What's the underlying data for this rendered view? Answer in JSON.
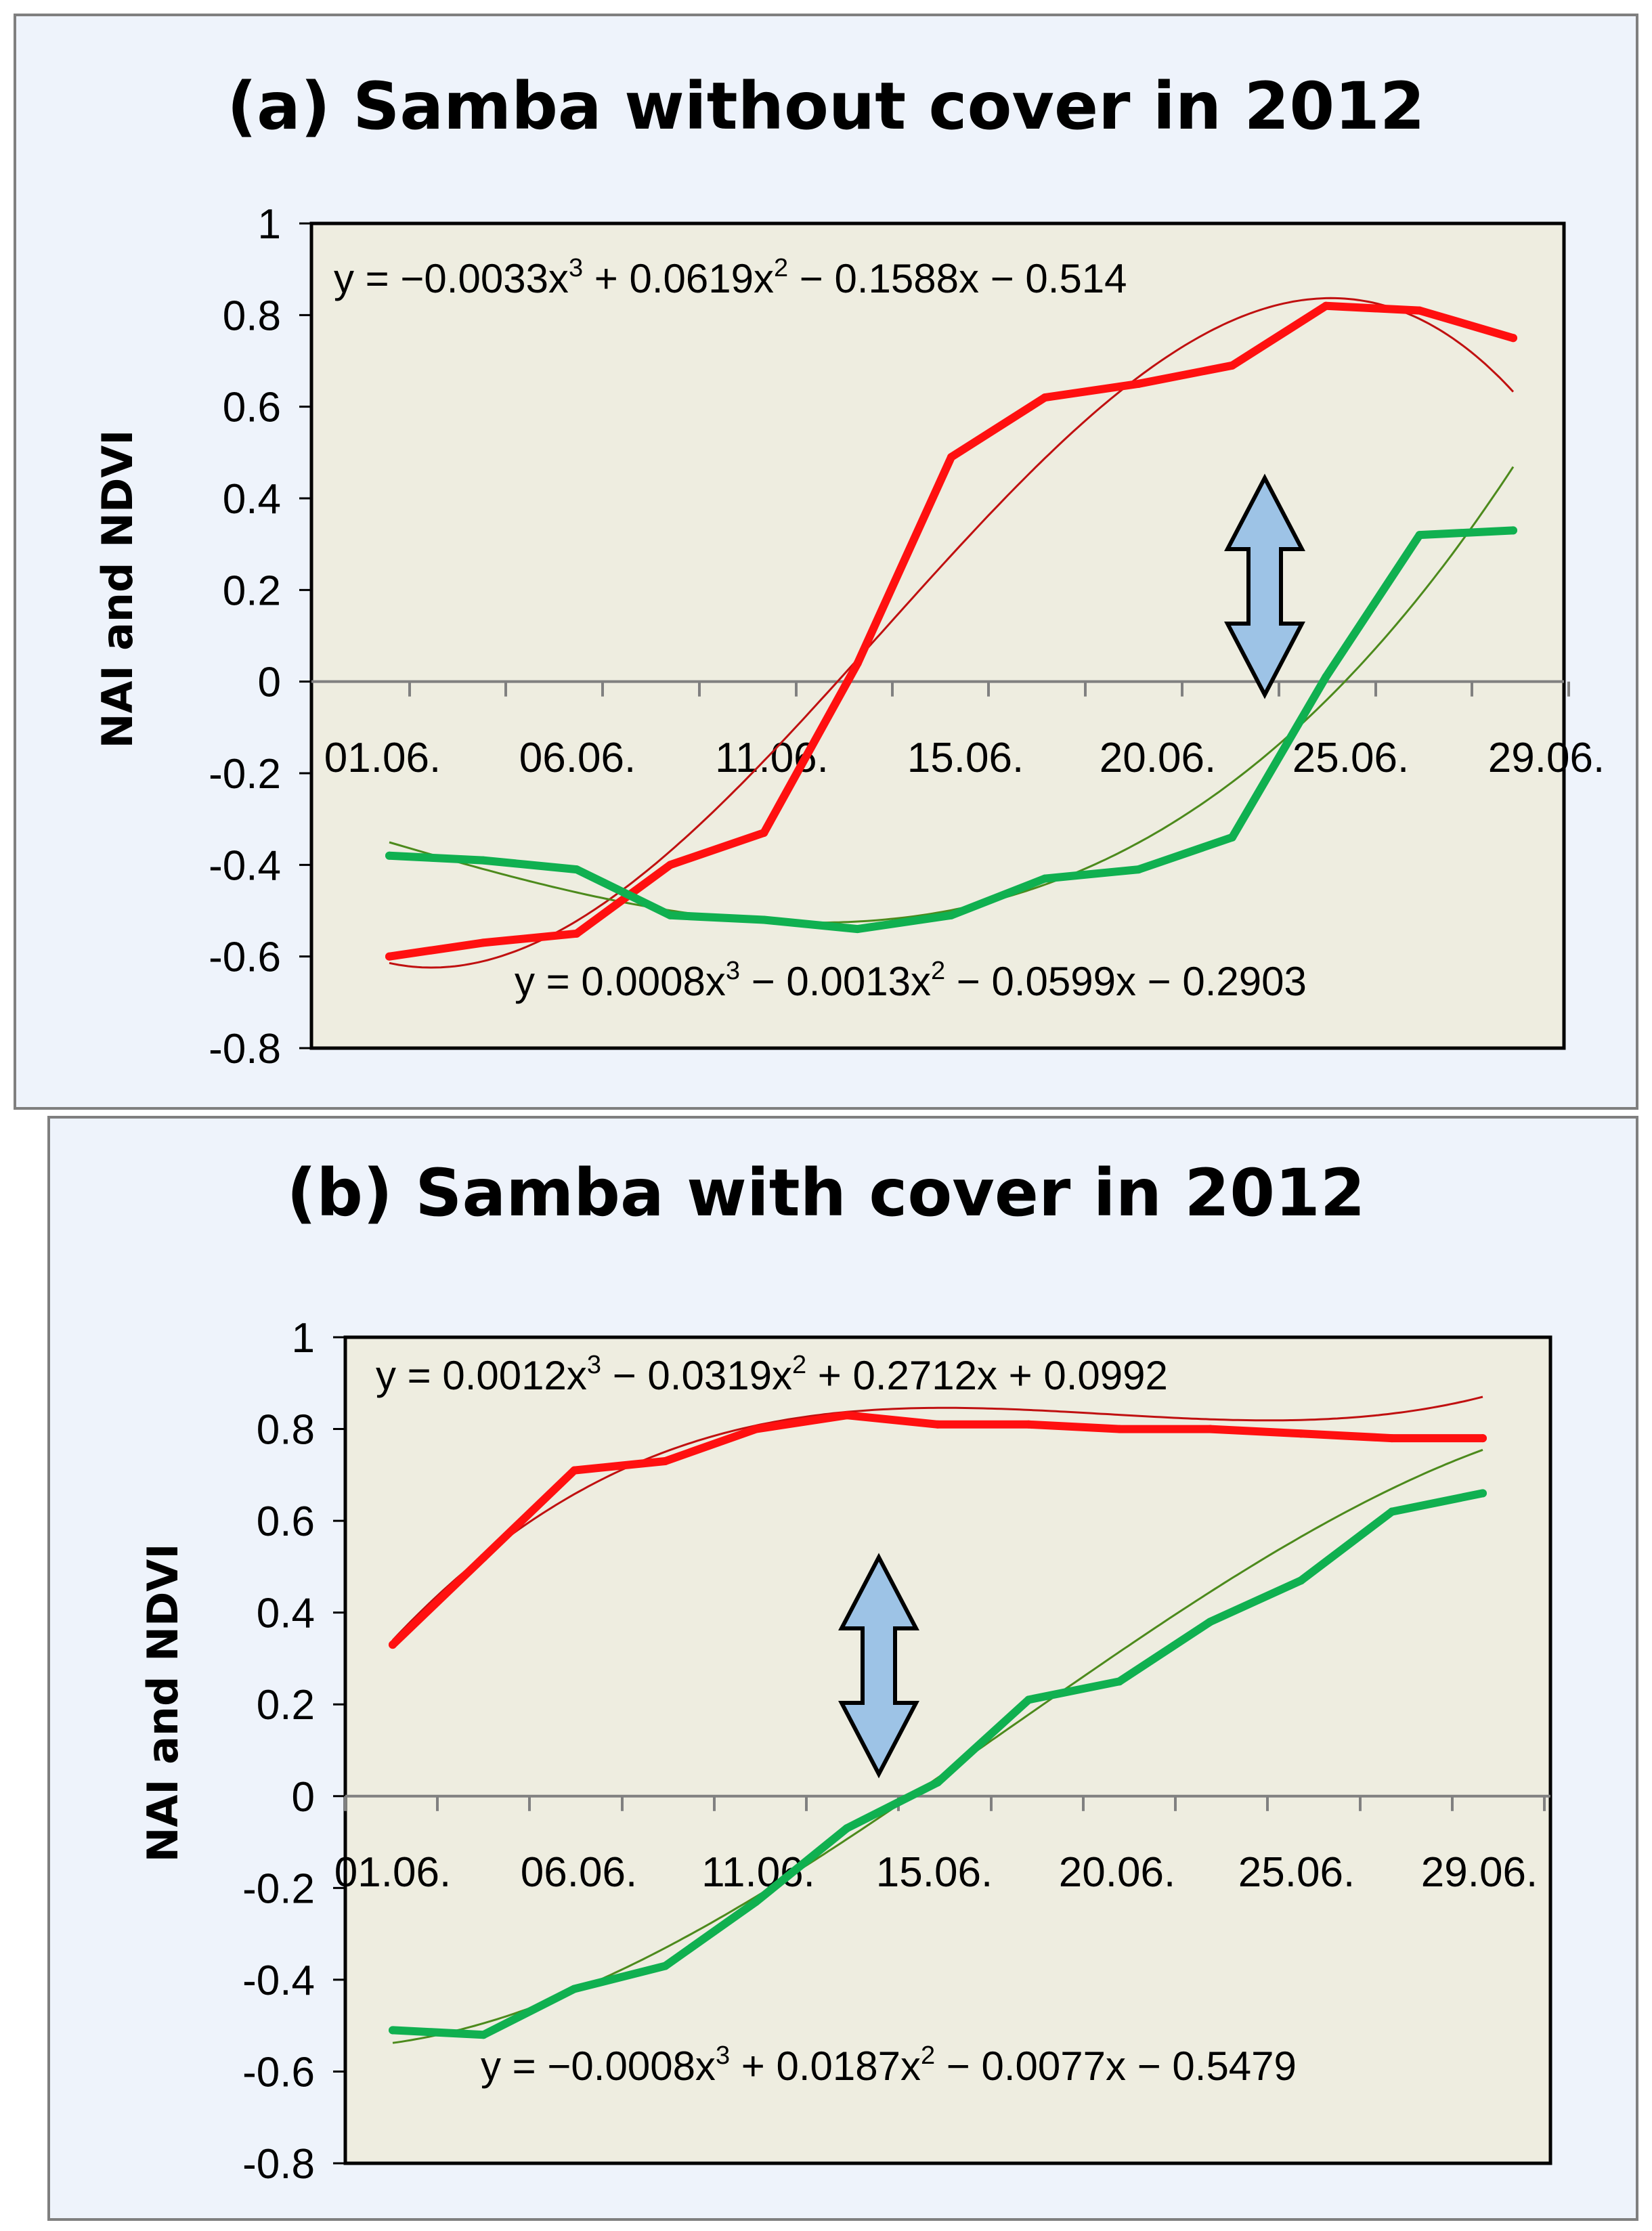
{
  "colors": {
    "panel_bg": "#eef3fb",
    "panel_border": "#7f7f7f",
    "plot_bg": "#eeede0",
    "red": "#ff1010",
    "red_fit": "#c01010",
    "green": "#10b050",
    "green_fit": "#4c8a1c",
    "arrow_fill": "#9dc3e6"
  },
  "chart_data": [
    {
      "type": "line",
      "title": "(a) Samba without cover in 2012",
      "ylabel": "NAI and NDVI",
      "xlabel": "",
      "ylim": [
        -0.8,
        1
      ],
      "yticks": [
        "1",
        "0.8",
        "0.6",
        "0.4",
        "0.2",
        "0",
        "-0.2",
        "-0.4",
        "-0.6",
        "-0.8"
      ],
      "xtick_labels": [
        "01.06.",
        "06.06.",
        "11.06.",
        "15.06.",
        "20.06.",
        "25.06.",
        "29.06."
      ],
      "x": [
        1,
        2,
        3,
        4,
        5,
        6,
        7,
        8,
        9,
        10,
        11,
        12,
        13
      ],
      "series": [
        {
          "name": "NAI",
          "color": "red",
          "values": [
            -0.6,
            -0.57,
            -0.55,
            -0.4,
            -0.33,
            0.04,
            0.49,
            0.62,
            0.65,
            0.69,
            0.82,
            0.81,
            0.75
          ]
        },
        {
          "name": "NDVI",
          "color": "green",
          "values": [
            -0.38,
            -0.39,
            -0.41,
            -0.51,
            -0.52,
            -0.54,
            -0.51,
            -0.43,
            -0.41,
            -0.34,
            0.01,
            0.32,
            0.33
          ]
        }
      ],
      "trendlines": [
        {
          "series": "NAI",
          "coefficients": [
            -0.0033,
            0.0619,
            -0.1588,
            -0.514
          ]
        },
        {
          "series": "NDVI",
          "coefficients": [
            0.0008,
            -0.0013,
            -0.0599,
            -0.2903
          ]
        }
      ],
      "annotations": [
        {
          "series": "NAI",
          "parts": [
            "y = −0.0033x",
            "3",
            " + 0.0619x",
            "2",
            " − 0.1588x − 0.514"
          ]
        },
        {
          "series": "NDVI",
          "parts": [
            "y = 0.0008x",
            "3",
            " − 0.0013x",
            "2",
            " − 0.0599x − 0.2903"
          ]
        }
      ],
      "arrow_icon": "double-arrow-icon"
    },
    {
      "type": "line",
      "title": "(b) Samba with cover in 2012",
      "ylabel": "NAI and NDVI",
      "xlabel": "",
      "ylim": [
        -0.8,
        1
      ],
      "yticks": [
        "1",
        "0.8",
        "0.6",
        "0.4",
        "0.2",
        "0",
        "-0.2",
        "-0.4",
        "-0.6",
        "-0.8"
      ],
      "xtick_labels": [
        "01.06.",
        "06.06.",
        "11.06.",
        "15.06.",
        "20.06.",
        "25.06.",
        "29.06."
      ],
      "x": [
        1,
        2,
        3,
        4,
        5,
        6,
        7,
        8,
        9,
        10,
        11,
        12,
        13
      ],
      "series": [
        {
          "name": "NAI",
          "color": "red",
          "values": [
            0.33,
            0.52,
            0.71,
            0.73,
            0.8,
            0.83,
            0.81,
            0.81,
            0.8,
            0.8,
            0.79,
            0.78,
            0.78
          ]
        },
        {
          "name": "NDVI",
          "color": "green",
          "values": [
            -0.51,
            -0.52,
            -0.42,
            -0.37,
            -0.23,
            -0.07,
            0.03,
            0.21,
            0.25,
            0.38,
            0.47,
            0.62,
            0.66
          ]
        }
      ],
      "trendlines": [
        {
          "series": "NAI",
          "coefficients": [
            0.0012,
            -0.0319,
            0.2712,
            0.0992
          ]
        },
        {
          "series": "NDVI",
          "coefficients": [
            -0.0008,
            0.0187,
            -0.0077,
            -0.5479
          ]
        }
      ],
      "annotations": [
        {
          "series": "NAI",
          "parts": [
            "y = 0.0012x",
            "3",
            " − 0.0319x",
            "2",
            " + 0.2712x + 0.0992"
          ]
        },
        {
          "series": "NDVI",
          "parts": [
            "y = −0.0008x",
            "3",
            " + 0.0187x",
            "2",
            " − 0.0077x − 0.5479"
          ]
        }
      ],
      "arrow_icon": "double-arrow-icon"
    }
  ]
}
